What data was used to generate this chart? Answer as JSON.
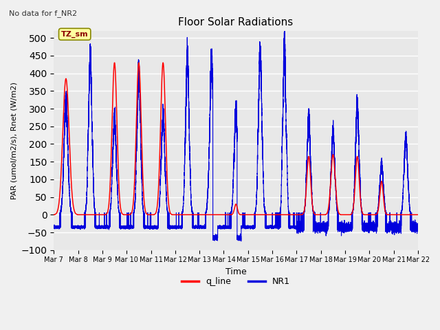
{
  "title": "Floor Solar Radiations",
  "xlabel": "Time",
  "ylabel": "PAR (umol/m2/s), Rnet (W/m2)",
  "ylim": [
    -100,
    520
  ],
  "yticks": [
    -100,
    -50,
    0,
    50,
    100,
    150,
    200,
    250,
    300,
    350,
    400,
    450,
    500
  ],
  "note": "No data for f_NR2",
  "tz_label": "TZ_sm",
  "legend_entries": [
    "q_line",
    "NR1"
  ],
  "legend_colors": [
    "#ff0000",
    "#0000dd"
  ],
  "plot_bg": "#e8e8e8",
  "fig_bg": "#f0f0f0",
  "grid_color": "#ffffff",
  "start_day": 7,
  "end_day": 22,
  "num_days": 15,
  "red_peaks": [
    385,
    0,
    430,
    430,
    430,
    0,
    0,
    30,
    0,
    0,
    165,
    170,
    165,
    95,
    0
  ],
  "red_widths": [
    0.13,
    0.0,
    0.1,
    0.1,
    0.1,
    0.0,
    0.0,
    0.06,
    0.0,
    0.0,
    0.08,
    0.09,
    0.08,
    0.07,
    0.0
  ],
  "blue_peaks": [
    315,
    440,
    280,
    400,
    280,
    440,
    420,
    290,
    455,
    480,
    270,
    230,
    305,
    140,
    215
  ],
  "blue_widths": [
    0.08,
    0.07,
    0.07,
    0.07,
    0.07,
    0.07,
    0.08,
    0.07,
    0.07,
    0.06,
    0.07,
    0.07,
    0.07,
    0.07,
    0.07
  ],
  "night_nr1": -35
}
